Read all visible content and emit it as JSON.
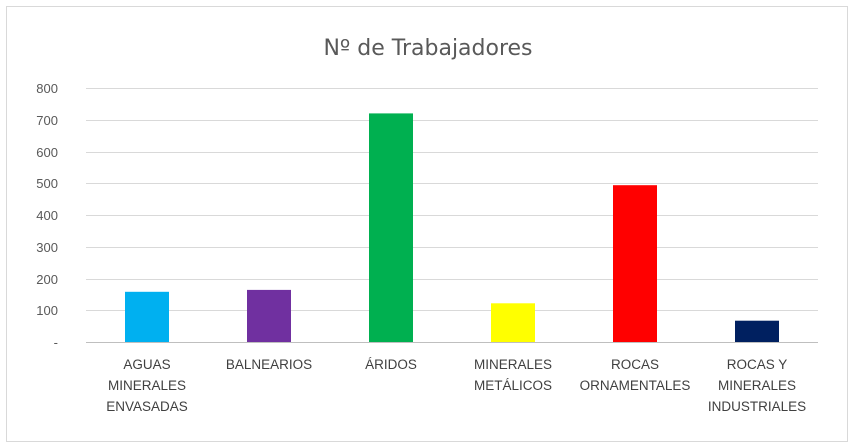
{
  "chart_data": {
    "type": "bar",
    "title": "Nº de Trabajadores",
    "xlabel": "",
    "ylabel": "",
    "categories": [
      "AGUAS MINERALES ENVASADAS",
      "BALNEARIOS",
      "ÁRIDOS",
      "MINERALES METÁLICOS",
      "ROCAS ORNAMENTALES",
      "ROCAS Y MINERALES INDUSTRIALES"
    ],
    "category_lines": [
      [
        "AGUAS",
        "MINERALES",
        "ENVASADAS"
      ],
      [
        "BALNEARIOS"
      ],
      [
        "ÁRIDOS"
      ],
      [
        "MINERALES",
        "METÁLICOS"
      ],
      [
        "ROCAS",
        "ORNAMENTALES"
      ],
      [
        "ROCAS Y",
        "MINERALES",
        "INDUSTRIALES"
      ]
    ],
    "values": [
      158,
      164,
      720,
      122,
      494,
      67
    ],
    "colors": [
      "#00b0f0",
      "#7030a0",
      "#00b050",
      "#ffff00",
      "#ff0000",
      "#002060"
    ],
    "ylim": [
      0,
      800
    ],
    "yticks": [
      0,
      100,
      200,
      300,
      400,
      500,
      600,
      700,
      800
    ],
    "ytick_labels": [
      "-",
      "100",
      "200",
      "300",
      "400",
      "500",
      "600",
      "700",
      "800"
    ],
    "grid": true,
    "legend": "none"
  }
}
